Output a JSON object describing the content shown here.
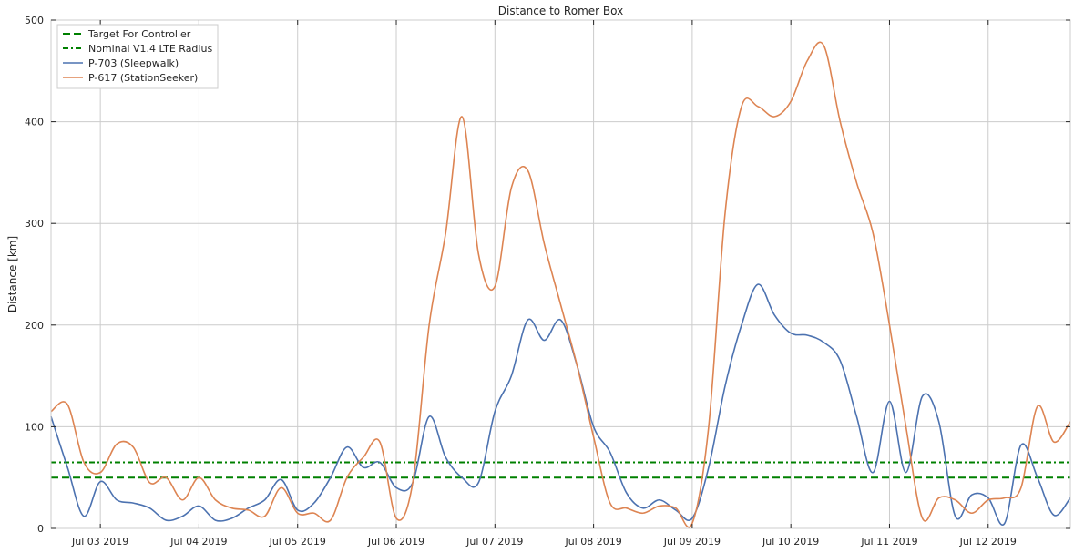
{
  "chart_data": {
    "type": "line",
    "title": "Distance to Romer Box",
    "xlabel": "",
    "ylabel": "Distance [km]",
    "xlim": [
      "2019-07-02T12:00",
      "2019-07-12T20:00"
    ],
    "ylim": [
      0,
      500
    ],
    "y_ticks": [
      0,
      100,
      200,
      300,
      400,
      500
    ],
    "x_ticks": [
      {
        "t": "2019-07-03T00:00",
        "label": "Jul 03 2019"
      },
      {
        "t": "2019-07-04T00:00",
        "label": "Jul 04 2019"
      },
      {
        "t": "2019-07-05T00:00",
        "label": "Jul 05 2019"
      },
      {
        "t": "2019-07-06T00:00",
        "label": "Jul 06 2019"
      },
      {
        "t": "2019-07-07T00:00",
        "label": "Jul 07 2019"
      },
      {
        "t": "2019-07-08T00:00",
        "label": "Jul 08 2019"
      },
      {
        "t": "2019-07-09T00:00",
        "label": "Jul 09 2019"
      },
      {
        "t": "2019-07-10T00:00",
        "label": "Jul 10 2019"
      },
      {
        "t": "2019-07-11T00:00",
        "label": "Jul 11 2019"
      },
      {
        "t": "2019-07-12T00:00",
        "label": "Jul 12 2019"
      }
    ],
    "grid": true,
    "legend_position": "top-left",
    "hlines": [
      {
        "name": "Target For Controller",
        "y": 50,
        "color": "#008000",
        "style": "dashed"
      },
      {
        "name": "Nominal V1.4 LTE Radius",
        "y": 65,
        "color": "#008000",
        "style": "dashdot"
      }
    ],
    "series": [
      {
        "name": "P-703 (Sleepwalk)",
        "color": "#4c72b0",
        "points": [
          [
            "2019-07-02T12:00",
            110
          ],
          [
            "2019-07-02T16:00",
            60
          ],
          [
            "2019-07-02T20:00",
            12
          ],
          [
            "2019-07-03T00:00",
            46
          ],
          [
            "2019-07-03T04:00",
            28
          ],
          [
            "2019-07-03T08:00",
            25
          ],
          [
            "2019-07-03T12:00",
            20
          ],
          [
            "2019-07-03T16:00",
            8
          ],
          [
            "2019-07-03T20:00",
            12
          ],
          [
            "2019-07-04T00:00",
            22
          ],
          [
            "2019-07-04T04:00",
            8
          ],
          [
            "2019-07-04T08:00",
            10
          ],
          [
            "2019-07-04T12:00",
            20
          ],
          [
            "2019-07-04T16:00",
            28
          ],
          [
            "2019-07-04T20:00",
            48
          ],
          [
            "2019-07-05T00:00",
            18
          ],
          [
            "2019-07-05T04:00",
            25
          ],
          [
            "2019-07-05T08:00",
            50
          ],
          [
            "2019-07-05T12:00",
            80
          ],
          [
            "2019-07-05T16:00",
            60
          ],
          [
            "2019-07-05T20:00",
            65
          ],
          [
            "2019-07-06T00:00",
            40
          ],
          [
            "2019-07-06T04:00",
            45
          ],
          [
            "2019-07-06T08:00",
            110
          ],
          [
            "2019-07-06T12:00",
            70
          ],
          [
            "2019-07-06T16:00",
            50
          ],
          [
            "2019-07-06T20:00",
            45
          ],
          [
            "2019-07-07T00:00",
            115
          ],
          [
            "2019-07-07T04:00",
            150
          ],
          [
            "2019-07-07T08:00",
            205
          ],
          [
            "2019-07-07T12:00",
            185
          ],
          [
            "2019-07-07T16:00",
            205
          ],
          [
            "2019-07-07T20:00",
            160
          ],
          [
            "2019-07-08T00:00",
            100
          ],
          [
            "2019-07-08T04:00",
            75
          ],
          [
            "2019-07-08T08:00",
            35
          ],
          [
            "2019-07-08T12:00",
            20
          ],
          [
            "2019-07-08T16:00",
            28
          ],
          [
            "2019-07-08T20:00",
            18
          ],
          [
            "2019-07-09T00:00",
            10
          ],
          [
            "2019-07-09T04:00",
            60
          ],
          [
            "2019-07-09T08:00",
            140
          ],
          [
            "2019-07-09T12:00",
            200
          ],
          [
            "2019-07-09T16:00",
            240
          ],
          [
            "2019-07-09T20:00",
            210
          ],
          [
            "2019-07-10T00:00",
            192
          ],
          [
            "2019-07-10T04:00",
            190
          ],
          [
            "2019-07-10T08:00",
            183
          ],
          [
            "2019-07-10T12:00",
            165
          ],
          [
            "2019-07-10T16:00",
            110
          ],
          [
            "2019-07-10T20:00",
            55
          ],
          [
            "2019-07-11T00:00",
            125
          ],
          [
            "2019-07-11T04:00",
            55
          ],
          [
            "2019-07-11T08:00",
            130
          ],
          [
            "2019-07-11T12:00",
            105
          ],
          [
            "2019-07-11T16:00",
            12
          ],
          [
            "2019-07-11T20:00",
            33
          ],
          [
            "2019-07-12T00:00",
            30
          ],
          [
            "2019-07-12T04:00",
            5
          ],
          [
            "2019-07-12T08:00",
            82
          ],
          [
            "2019-07-12T12:00",
            50
          ],
          [
            "2019-07-12T16:00",
            13
          ],
          [
            "2019-07-12T20:00",
            30
          ]
        ]
      },
      {
        "name": "P-617 (StationSeeker)",
        "color": "#dd8452",
        "points": [
          [
            "2019-07-02T12:00",
            115
          ],
          [
            "2019-07-02T16:00",
            122
          ],
          [
            "2019-07-02T20:00",
            65
          ],
          [
            "2019-07-03T00:00",
            55
          ],
          [
            "2019-07-03T04:00",
            83
          ],
          [
            "2019-07-03T08:00",
            80
          ],
          [
            "2019-07-03T12:00",
            45
          ],
          [
            "2019-07-03T16:00",
            50
          ],
          [
            "2019-07-03T20:00",
            28
          ],
          [
            "2019-07-04T00:00",
            50
          ],
          [
            "2019-07-04T04:00",
            28
          ],
          [
            "2019-07-04T08:00",
            20
          ],
          [
            "2019-07-04T12:00",
            18
          ],
          [
            "2019-07-04T16:00",
            12
          ],
          [
            "2019-07-04T20:00",
            40
          ],
          [
            "2019-07-05T00:00",
            15
          ],
          [
            "2019-07-05T04:00",
            15
          ],
          [
            "2019-07-05T08:00",
            8
          ],
          [
            "2019-07-05T12:00",
            50
          ],
          [
            "2019-07-05T16:00",
            70
          ],
          [
            "2019-07-05T20:00",
            85
          ],
          [
            "2019-07-06T00:00",
            10
          ],
          [
            "2019-07-06T04:00",
            45
          ],
          [
            "2019-07-06T08:00",
            200
          ],
          [
            "2019-07-06T12:00",
            290
          ],
          [
            "2019-07-06T16:00",
            405
          ],
          [
            "2019-07-06T20:00",
            270
          ],
          [
            "2019-07-07T00:00",
            238
          ],
          [
            "2019-07-07T04:00",
            335
          ],
          [
            "2019-07-07T08:00",
            352
          ],
          [
            "2019-07-07T12:00",
            280
          ],
          [
            "2019-07-07T16:00",
            220
          ],
          [
            "2019-07-07T20:00",
            160
          ],
          [
            "2019-07-08T00:00",
            90
          ],
          [
            "2019-07-08T04:00",
            25
          ],
          [
            "2019-07-08T08:00",
            20
          ],
          [
            "2019-07-08T12:00",
            15
          ],
          [
            "2019-07-08T16:00",
            22
          ],
          [
            "2019-07-08T20:00",
            20
          ],
          [
            "2019-07-09T00:00",
            5
          ],
          [
            "2019-07-09T04:00",
            100
          ],
          [
            "2019-07-09T08:00",
            310
          ],
          [
            "2019-07-09T12:00",
            415
          ],
          [
            "2019-07-09T16:00",
            415
          ],
          [
            "2019-07-09T20:00",
            405
          ],
          [
            "2019-07-10T00:00",
            420
          ],
          [
            "2019-07-10T04:00",
            460
          ],
          [
            "2019-07-10T08:00",
            475
          ],
          [
            "2019-07-10T12:00",
            400
          ],
          [
            "2019-07-10T16:00",
            340
          ],
          [
            "2019-07-10T20:00",
            290
          ],
          [
            "2019-07-11T00:00",
            200
          ],
          [
            "2019-07-11T04:00",
            100
          ],
          [
            "2019-07-11T08:00",
            10
          ],
          [
            "2019-07-11T12:00",
            30
          ],
          [
            "2019-07-11T16:00",
            28
          ],
          [
            "2019-07-11T20:00",
            15
          ],
          [
            "2019-07-12T00:00",
            28
          ],
          [
            "2019-07-12T04:00",
            30
          ],
          [
            "2019-07-12T08:00",
            40
          ],
          [
            "2019-07-12T12:00",
            120
          ],
          [
            "2019-07-12T16:00",
            85
          ],
          [
            "2019-07-12T20:00",
            105
          ]
        ]
      }
    ]
  }
}
